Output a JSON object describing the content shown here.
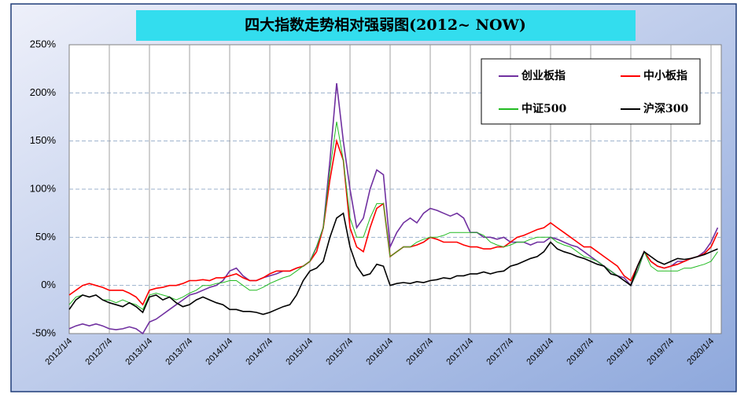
{
  "chart_data": {
    "type": "line",
    "title": "四大指数走势相对强弱图(2012~ NOW)",
    "categories": [
      "2012/1/4",
      null,
      null,
      null,
      null,
      null,
      "2012/7/4",
      null,
      null,
      null,
      null,
      null,
      "2013/1/4",
      null,
      null,
      null,
      null,
      null,
      "2013/7/4",
      null,
      null,
      null,
      null,
      null,
      "2014/1/4",
      null,
      null,
      null,
      null,
      null,
      "2014/7/4",
      null,
      null,
      null,
      null,
      null,
      "2015/1/4",
      null,
      null,
      null,
      null,
      null,
      "2015/7/4",
      null,
      null,
      null,
      null,
      null,
      "2016/1/4",
      null,
      null,
      null,
      null,
      null,
      "2016/7/4",
      null,
      null,
      null,
      null,
      null,
      "2017/1/4",
      null,
      null,
      null,
      null,
      null,
      "2017/7/4",
      null,
      null,
      null,
      null,
      null,
      "2018/1/4",
      null,
      null,
      null,
      null,
      null,
      "2018/7/4",
      null,
      null,
      null,
      null,
      null,
      "2019/1/4",
      null,
      null,
      null,
      null,
      null,
      "2019/7/4",
      null,
      null,
      null,
      null,
      null,
      "2020/1/4",
      null
    ],
    "series": [
      {
        "name": "创业板指",
        "color": "#7030a0",
        "values": [
          -45,
          -42,
          -40,
          -42,
          -40,
          -42,
          -45,
          -46,
          -45,
          -43,
          -45,
          -50,
          -38,
          -35,
          -30,
          -25,
          -20,
          -15,
          -10,
          -8,
          -5,
          -2,
          0,
          5,
          15,
          18,
          10,
          5,
          5,
          8,
          10,
          12,
          15,
          15,
          18,
          20,
          25,
          40,
          60,
          130,
          210,
          150,
          100,
          60,
          70,
          100,
          120,
          115,
          40,
          55,
          65,
          70,
          65,
          75,
          80,
          78,
          75,
          72,
          75,
          70,
          55,
          55,
          50,
          50,
          48,
          50,
          45,
          45,
          45,
          42,
          45,
          45,
          50,
          48,
          45,
          42,
          40,
          35,
          30,
          25,
          20,
          15,
          10,
          8,
          0,
          15,
          35,
          25,
          20,
          18,
          20,
          25,
          25,
          28,
          30,
          35,
          45,
          60
        ]
      },
      {
        "name": "中小板指",
        "color": "#ff0000",
        "values": [
          -10,
          -5,
          0,
          2,
          0,
          -2,
          -5,
          -5,
          -5,
          -8,
          -12,
          -20,
          -5,
          -3,
          -2,
          0,
          0,
          2,
          5,
          5,
          6,
          5,
          8,
          8,
          10,
          12,
          8,
          5,
          5,
          8,
          12,
          15,
          15,
          15,
          18,
          20,
          25,
          35,
          60,
          110,
          150,
          130,
          60,
          40,
          35,
          60,
          80,
          85,
          30,
          35,
          40,
          40,
          42,
          45,
          50,
          48,
          45,
          45,
          45,
          42,
          40,
          40,
          38,
          38,
          40,
          40,
          45,
          50,
          52,
          55,
          58,
          60,
          65,
          60,
          55,
          50,
          45,
          40,
          40,
          35,
          30,
          25,
          20,
          10,
          5,
          20,
          35,
          25,
          20,
          18,
          20,
          22,
          25,
          28,
          30,
          33,
          40,
          55
        ]
      },
      {
        "name": "中证500",
        "color": "#22bb22",
        "values": [
          -20,
          -12,
          -10,
          -12,
          -10,
          -15,
          -15,
          -18,
          -15,
          -18,
          -20,
          -25,
          -10,
          -8,
          -10,
          -12,
          -15,
          -12,
          -8,
          -5,
          0,
          0,
          2,
          3,
          5,
          5,
          0,
          -5,
          -5,
          -2,
          2,
          5,
          8,
          10,
          15,
          20,
          25,
          40,
          60,
          120,
          170,
          130,
          70,
          50,
          50,
          70,
          85,
          85,
          30,
          35,
          40,
          40,
          45,
          48,
          50,
          50,
          52,
          55,
          55,
          55,
          55,
          55,
          52,
          45,
          42,
          40,
          42,
          45,
          45,
          48,
          50,
          50,
          50,
          45,
          42,
          40,
          35,
          30,
          28,
          25,
          20,
          15,
          10,
          5,
          0,
          15,
          35,
          20,
          15,
          15,
          15,
          15,
          18,
          18,
          20,
          22,
          25,
          35
        ]
      },
      {
        "name": "沪深300",
        "color": "#000000",
        "values": [
          -25,
          -15,
          -10,
          -12,
          -10,
          -15,
          -18,
          -20,
          -22,
          -18,
          -22,
          -28,
          -12,
          -10,
          -15,
          -12,
          -18,
          -22,
          -20,
          -15,
          -12,
          -15,
          -18,
          -20,
          -25,
          -25,
          -27,
          -27,
          -28,
          -30,
          -28,
          -25,
          -22,
          -20,
          -10,
          5,
          15,
          18,
          25,
          50,
          70,
          75,
          40,
          20,
          10,
          12,
          22,
          20,
          0,
          2,
          3,
          2,
          4,
          3,
          5,
          6,
          8,
          7,
          10,
          10,
          12,
          12,
          14,
          12,
          14,
          15,
          20,
          22,
          25,
          28,
          30,
          35,
          45,
          38,
          35,
          33,
          30,
          28,
          25,
          22,
          20,
          12,
          10,
          5,
          0,
          20,
          35,
          30,
          25,
          22,
          25,
          28,
          27,
          28,
          30,
          32,
          35,
          38
        ]
      }
    ],
    "ylim": [
      -50,
      250
    ],
    "yticks": [
      {
        "value": -50,
        "label": "-50%"
      },
      {
        "value": 0,
        "label": "0%"
      },
      {
        "value": 50,
        "label": "50%"
      },
      {
        "value": 100,
        "label": "100%"
      },
      {
        "value": 150,
        "label": "150%"
      },
      {
        "value": 200,
        "label": "200%"
      },
      {
        "value": 250,
        "label": "250%"
      }
    ],
    "grid": true,
    "legend": "upper right"
  }
}
